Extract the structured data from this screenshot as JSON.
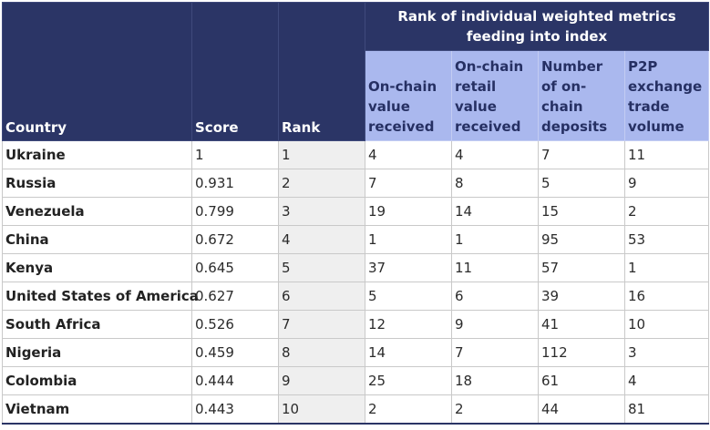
{
  "header": {
    "country": "Country",
    "score": "Score",
    "rank": "Rank",
    "group": "Rank of individual weighted metrics feeding into index",
    "metrics": [
      "On-chain value received",
      "On-chain retail value received",
      "Number of on-chain deposits",
      "P2P exchange trade volume"
    ]
  },
  "rows": [
    {
      "country": "Ukraine",
      "score": "1",
      "rank": "1",
      "m": [
        "4",
        "4",
        "7",
        "11"
      ]
    },
    {
      "country": "Russia",
      "score": "0.931",
      "rank": "2",
      "m": [
        "7",
        "8",
        "5",
        "9"
      ]
    },
    {
      "country": "Venezuela",
      "score": "0.799",
      "rank": "3",
      "m": [
        "19",
        "14",
        "15",
        "2"
      ]
    },
    {
      "country": "China",
      "score": "0.672",
      "rank": "4",
      "m": [
        "1",
        "1",
        "95",
        "53"
      ]
    },
    {
      "country": "Kenya",
      "score": "0.645",
      "rank": "5",
      "m": [
        "37",
        "11",
        "57",
        "1"
      ]
    },
    {
      "country": "United States of America",
      "score": "0.627",
      "rank": "6",
      "m": [
        "5",
        "6",
        "39",
        "16"
      ]
    },
    {
      "country": "South Africa",
      "score": "0.526",
      "rank": "7",
      "m": [
        "12",
        "9",
        "41",
        "10"
      ]
    },
    {
      "country": "Nigeria",
      "score": "0.459",
      "rank": "8",
      "m": [
        "14",
        "7",
        "112",
        "3"
      ]
    },
    {
      "country": "Colombia",
      "score": "0.444",
      "rank": "9",
      "m": [
        "25",
        "18",
        "61",
        "4"
      ]
    },
    {
      "country": "Vietnam",
      "score": "0.443",
      "rank": "10",
      "m": [
        "2",
        "2",
        "44",
        "81"
      ]
    }
  ]
}
